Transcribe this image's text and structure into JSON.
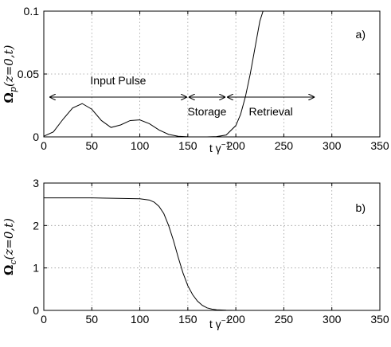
{
  "chart_data": [
    {
      "type": "line",
      "panel_label": "a)",
      "xlabel": "t γ",
      "xlabel_sup": "−1",
      "ylabel_main": "Ω",
      "ylabel_sub": "p",
      "ylabel_args": "(z=0,t)",
      "xlim": [
        0,
        350
      ],
      "ylim": [
        0,
        0.1
      ],
      "xticks": [
        "0",
        "50",
        "100",
        "150",
        "200",
        "250",
        "300",
        "350"
      ],
      "yticks": [
        "0",
        "0.05",
        "0.1"
      ],
      "grid": true,
      "annotations": [
        {
          "text": "Input Pulse",
          "span": [
            5,
            150
          ]
        },
        {
          "text": "Storage",
          "span": [
            150,
            190
          ]
        },
        {
          "text": "Retrieval",
          "span": [
            190,
            283
          ]
        }
      ],
      "series": [
        {
          "x": [
            0,
            10,
            20,
            30,
            40,
            50,
            60,
            70,
            80,
            90,
            100,
            110,
            120,
            130,
            140,
            150,
            160,
            170,
            180,
            190,
            200,
            205,
            210,
            215,
            220,
            225,
            230
          ],
          "y": [
            0.0005,
            0.004,
            0.014,
            0.023,
            0.0265,
            0.022,
            0.013,
            0.0075,
            0.0095,
            0.013,
            0.0135,
            0.0105,
            0.0055,
            0.002,
            0.0005,
            0.0001,
            0,
            0,
            0.0002,
            0.0015,
            0.009,
            0.018,
            0.032,
            0.05,
            0.071,
            0.092,
            0.104
          ]
        }
      ]
    },
    {
      "type": "line",
      "panel_label": "b)",
      "xlabel": "t γ",
      "xlabel_sup": "−1",
      "ylabel_main": "Ω",
      "ylabel_sub": "c",
      "ylabel_args": "(z=0,t)",
      "xlim": [
        0,
        350
      ],
      "ylim": [
        0,
        3
      ],
      "xticks": [
        "0",
        "50",
        "100",
        "150",
        "200",
        "250",
        "300",
        "350"
      ],
      "yticks": [
        "0",
        "1",
        "2",
        "3"
      ],
      "grid": true,
      "series": [
        {
          "x": [
            0,
            50,
            100,
            110,
            115,
            120,
            125,
            130,
            135,
            140,
            145,
            150,
            155,
            160,
            165,
            170,
            175,
            180,
            190,
            200,
            350
          ],
          "y": [
            2.65,
            2.65,
            2.63,
            2.6,
            2.55,
            2.45,
            2.28,
            2.0,
            1.65,
            1.25,
            0.88,
            0.58,
            0.37,
            0.22,
            0.12,
            0.06,
            0.03,
            0.015,
            0.004,
            0.001,
            0
          ]
        }
      ]
    }
  ]
}
